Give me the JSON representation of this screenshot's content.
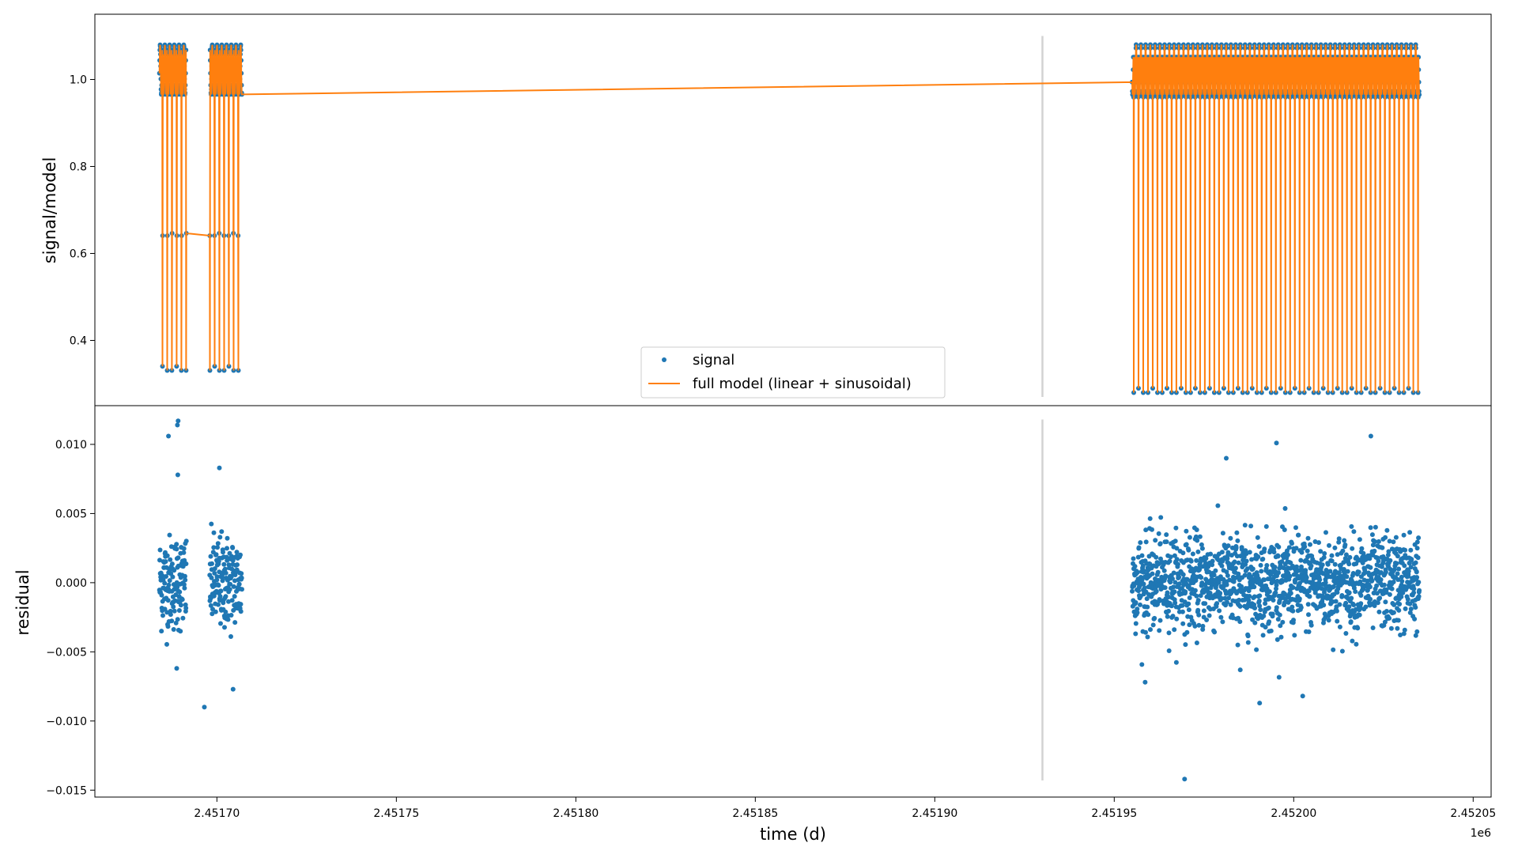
{
  "chart_data": [
    {
      "type": "scatter",
      "panel": "top",
      "ylabel": "signal/model",
      "xlabel": "",
      "xlim": [
        2451666,
        2452055
      ],
      "ylim": [
        0.25,
        1.15
      ],
      "yticks": [
        0.4,
        0.6,
        0.8,
        1.0
      ],
      "ytick_labels": [
        "0.4",
        "0.6",
        "0.8",
        "1.0"
      ],
      "grid": false,
      "legend_position": "lower-center",
      "legend": [
        "signal",
        "full model (linear + sinusoidal)"
      ],
      "series": [
        {
          "name": "signal",
          "kind": "scatter",
          "color": "#1f77b4"
        },
        {
          "name": "full model (linear + sinusoidal)",
          "kind": "line",
          "color": "#ff7f0e"
        }
      ],
      "sampling": {
        "segments": [
          [
            2451684,
            2451691.5
          ],
          [
            2451698,
            2451707
          ],
          [
            2451955,
            2452035
          ]
        ],
        "period_days": 1.32,
        "upper_level": 1.08,
        "lower_level": 0.965,
        "eclipse_min": 0.28,
        "eclipse_min_alt": 0.29
      },
      "vline": {
        "x": 2451930,
        "color": "#d3d3d3"
      }
    },
    {
      "type": "scatter",
      "panel": "bottom",
      "ylabel": "residual",
      "xlabel": "time (d)",
      "x_offset_label": "1e6",
      "xlim": [
        2451666,
        2452055
      ],
      "ylim": [
        -0.0155,
        0.0128
      ],
      "yticks": [
        -0.015,
        -0.01,
        -0.005,
        0.0,
        0.005,
        0.01
      ],
      "ytick_labels": [
        "−0.015",
        "−0.010",
        "−0.005",
        "0.000",
        "0.005",
        "0.010"
      ],
      "xticks": [
        2451700,
        2451750,
        2451800,
        2451850,
        2451900,
        2451950,
        2452000,
        2452050
      ],
      "xtick_labels": [
        "2.45170",
        "2.45175",
        "2.45180",
        "2.45185",
        "2.45190",
        "2.45195",
        "2.45200",
        "2.45205"
      ],
      "grid": false,
      "series": [
        {
          "name": "residual",
          "kind": "scatter",
          "color": "#1f77b4"
        }
      ],
      "outliers": [
        [
          2451689.2,
          0.0117
        ],
        [
          2451689.0,
          0.0114
        ],
        [
          2451686.5,
          0.0106
        ],
        [
          2451689.1,
          0.0078
        ],
        [
          2451700.7,
          0.0083
        ],
        [
          2451696.5,
          -0.009
        ],
        [
          2451704.5,
          -0.0077
        ],
        [
          2451688.8,
          -0.0062
        ],
        [
          2451969.6,
          -0.0142
        ],
        [
          2451981.2,
          0.009
        ],
        [
          2451995.2,
          0.0101
        ],
        [
          2452021.5,
          0.0106
        ],
        [
          2451990.5,
          -0.0087
        ],
        [
          2452002.5,
          -0.0082
        ],
        [
          2451958.6,
          -0.0072
        ],
        [
          2451985.1,
          -0.0063
        ]
      ],
      "vline": {
        "x": 2451930,
        "color": "#d3d3d3"
      }
    }
  ]
}
